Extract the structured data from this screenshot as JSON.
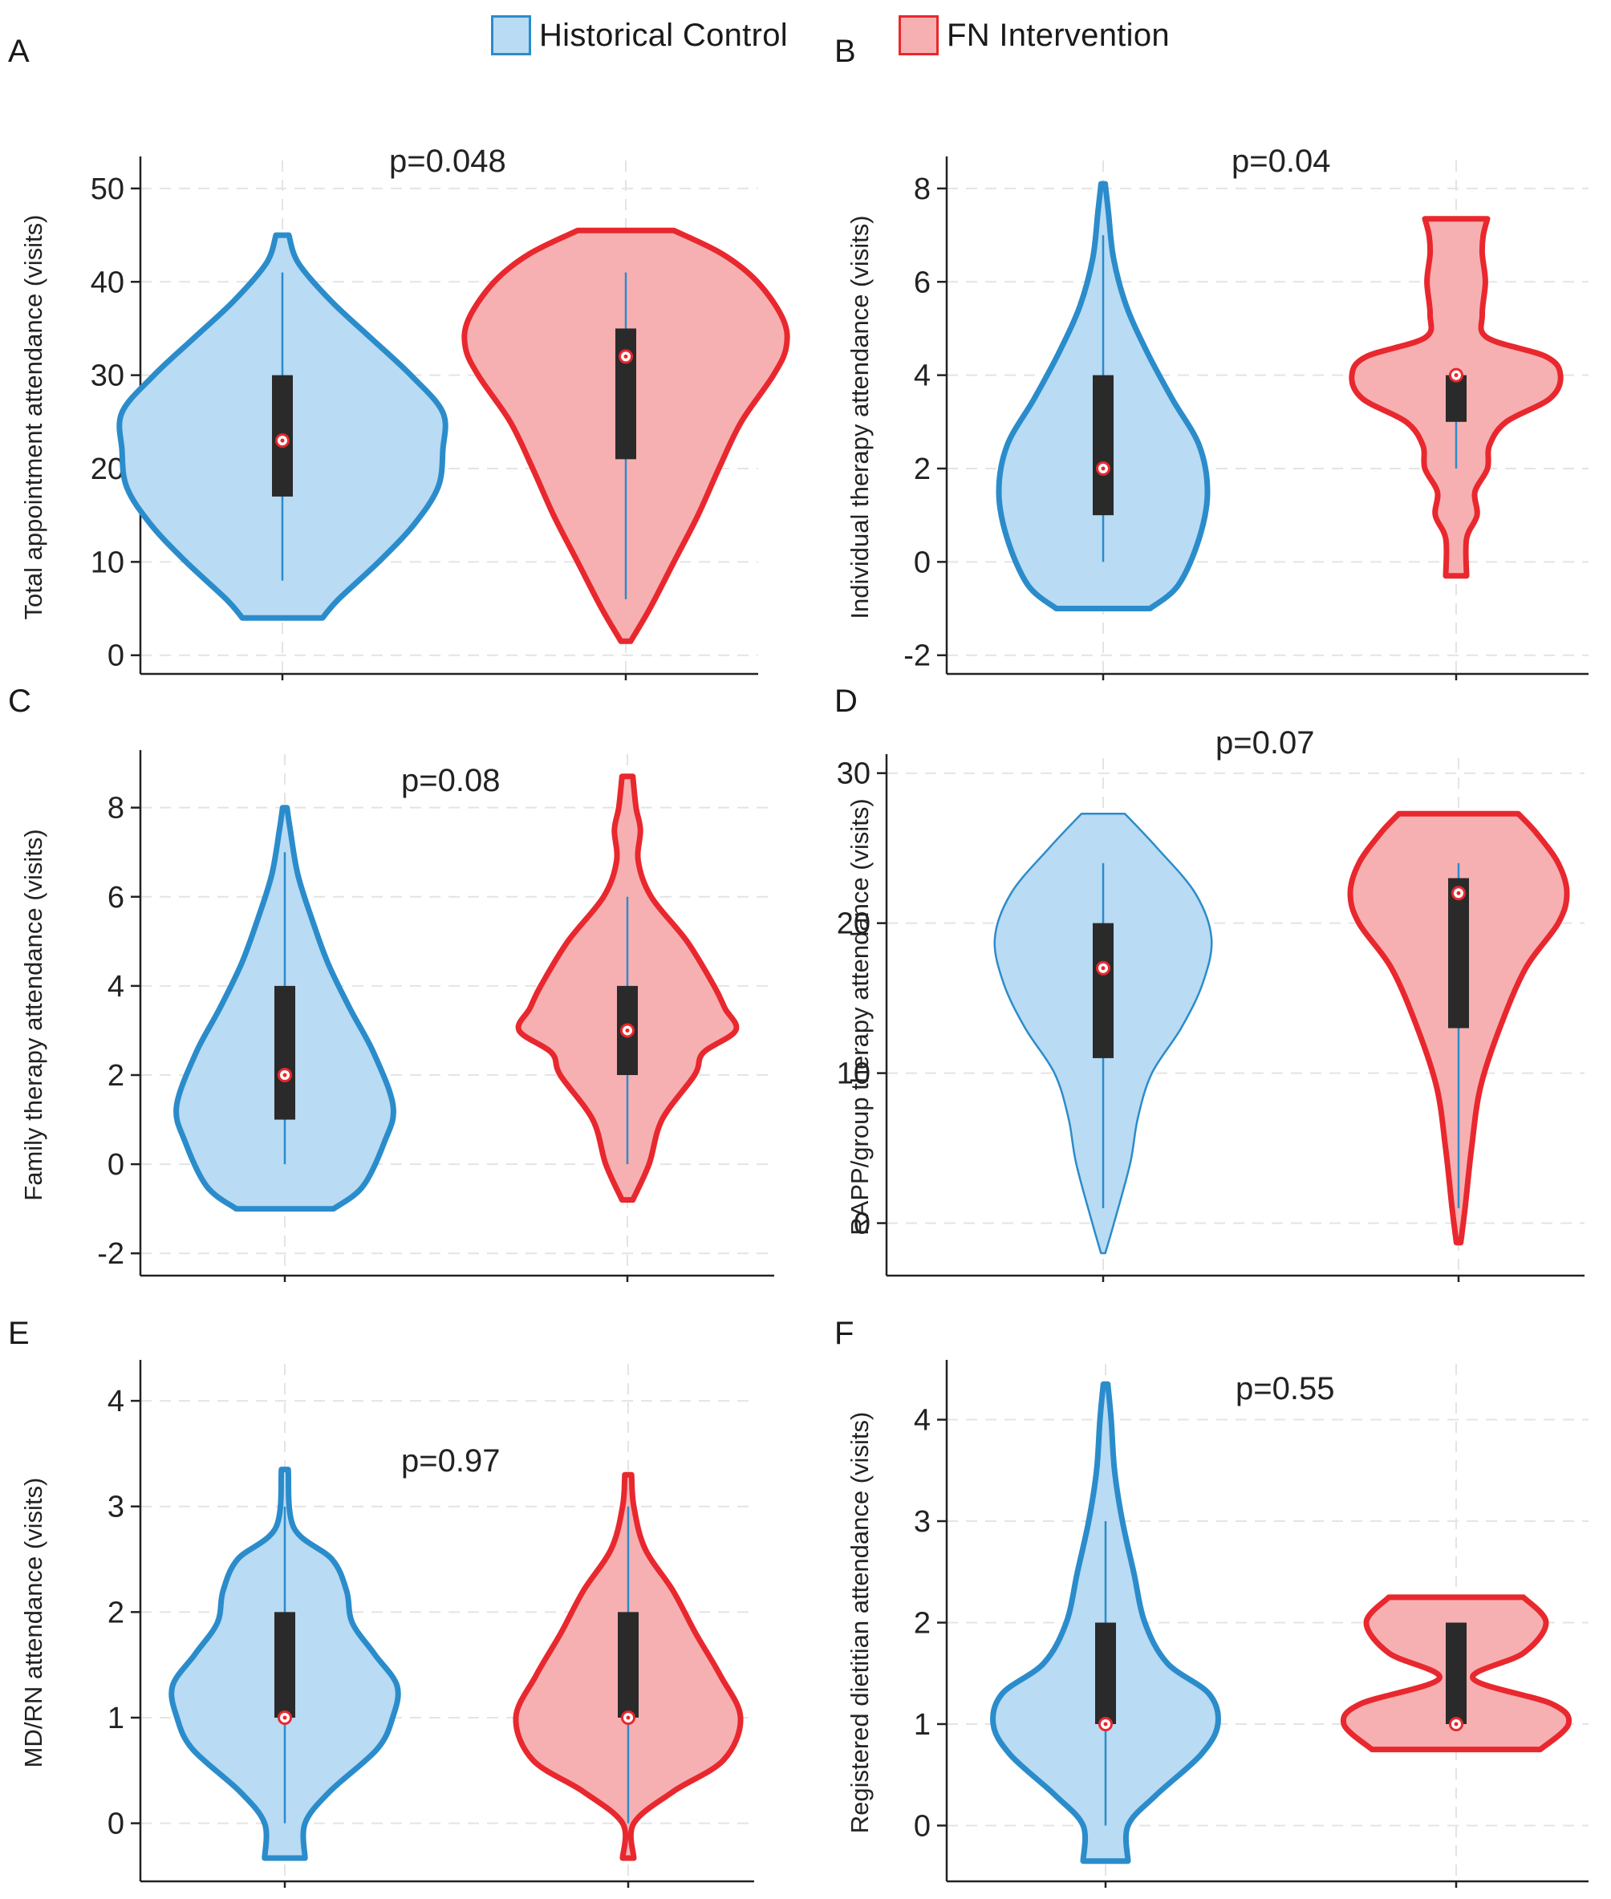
{
  "legend": {
    "control": {
      "label": "Historical Control",
      "fill": "#b9dbf3",
      "stroke": "#2b8ccb"
    },
    "intervention": {
      "label": "FN Intervention",
      "fill": "#f7b0b2",
      "stroke": "#e8282e"
    }
  },
  "chart_data": [
    {
      "type": "violin",
      "panel": "A",
      "annotation": "p=0.048",
      "ylabel": "Total appointment attendance (visits)",
      "ylim": [
        -2,
        53
      ],
      "yticks": [
        0,
        10,
        20,
        30,
        40,
        50
      ],
      "series": [
        {
          "name": "Historical Control",
          "min": 8,
          "q1": 17,
          "median": 23,
          "q3": 30,
          "max": 41,
          "density": [
            [
              4,
              0.25
            ],
            [
              6,
              0.35
            ],
            [
              10,
              0.6
            ],
            [
              14,
              0.82
            ],
            [
              18,
              0.97
            ],
            [
              22,
              1.0
            ],
            [
              26,
              1.0
            ],
            [
              30,
              0.8
            ],
            [
              34,
              0.55
            ],
            [
              38,
              0.3
            ],
            [
              42,
              0.1
            ],
            [
              45,
              0.04
            ]
          ]
        },
        {
          "name": "FN Intervention",
          "min": 6,
          "q1": 21,
          "median": 32,
          "q3": 35,
          "max": 41,
          "density": [
            [
              1.5,
              0.03
            ],
            [
              5,
              0.15
            ],
            [
              10,
              0.3
            ],
            [
              15,
              0.45
            ],
            [
              20,
              0.58
            ],
            [
              25,
              0.72
            ],
            [
              30,
              0.92
            ],
            [
              33,
              1.0
            ],
            [
              36,
              0.98
            ],
            [
              40,
              0.82
            ],
            [
              43,
              0.6
            ],
            [
              45.5,
              0.3
            ]
          ]
        }
      ]
    },
    {
      "type": "violin",
      "panel": "B",
      "annotation": "p=0.04",
      "ylabel": "Individual therapy attendance (visits)",
      "ylim": [
        -2.4,
        8.6
      ],
      "yticks": [
        -2,
        0,
        2,
        4,
        6,
        8
      ],
      "series": [
        {
          "name": "Historical Control",
          "min": 0,
          "q1": 1,
          "median": 2,
          "q3": 4,
          "max": 7,
          "density": [
            [
              -1,
              0.45
            ],
            [
              -0.5,
              0.72
            ],
            [
              0.5,
              0.92
            ],
            [
              1.5,
              1.0
            ],
            [
              2.5,
              0.92
            ],
            [
              3.5,
              0.66
            ],
            [
              4.5,
              0.42
            ],
            [
              5.5,
              0.22
            ],
            [
              6.5,
              0.1
            ],
            [
              7.5,
              0.05
            ],
            [
              8.1,
              0.02
            ]
          ]
        },
        {
          "name": "FN Intervention",
          "min": 2,
          "q1": 3,
          "median": 4,
          "q3": 4,
          "max": 4,
          "density": [
            [
              -0.3,
              0.1
            ],
            [
              0.5,
              0.1
            ],
            [
              1,
              0.2
            ],
            [
              1.5,
              0.18
            ],
            [
              2,
              0.3
            ],
            [
              2.5,
              0.32
            ],
            [
              3,
              0.48
            ],
            [
              3.5,
              0.9
            ],
            [
              4,
              1.0
            ],
            [
              4.4,
              0.86
            ],
            [
              4.8,
              0.3
            ],
            [
              5.3,
              0.25
            ],
            [
              6,
              0.28
            ],
            [
              6.6,
              0.25
            ],
            [
              7,
              0.26
            ],
            [
              7.35,
              0.3
            ]
          ]
        }
      ]
    },
    {
      "type": "violin",
      "panel": "C",
      "annotation": "p=0.08",
      "ylabel": "Family therapy attendance (visits)",
      "ylim": [
        -2.5,
        9.2
      ],
      "yticks": [
        -2,
        0,
        2,
        4,
        6,
        8
      ],
      "series": [
        {
          "name": "Historical Control",
          "min": 0,
          "q1": 1,
          "median": 2,
          "q3": 4,
          "max": 7,
          "density": [
            [
              -1,
              0.45
            ],
            [
              -0.5,
              0.72
            ],
            [
              0.5,
              0.92
            ],
            [
              1.3,
              1.0
            ],
            [
              2.5,
              0.82
            ],
            [
              3.5,
              0.6
            ],
            [
              4.5,
              0.4
            ],
            [
              5.5,
              0.25
            ],
            [
              6.5,
              0.12
            ],
            [
              7.5,
              0.05
            ],
            [
              8,
              0.02
            ]
          ]
        },
        {
          "name": "FN Intervention",
          "min": 0,
          "q1": 2,
          "median": 3,
          "q3": 4,
          "max": 6,
          "density": [
            [
              -0.8,
              0.05
            ],
            [
              0,
              0.2
            ],
            [
              1,
              0.32
            ],
            [
              2,
              0.62
            ],
            [
              2.5,
              0.7
            ],
            [
              3,
              1.0
            ],
            [
              3.5,
              0.9
            ],
            [
              4,
              0.8
            ],
            [
              5,
              0.55
            ],
            [
              6,
              0.22
            ],
            [
              6.8,
              0.1
            ],
            [
              7.5,
              0.12
            ],
            [
              8,
              0.08
            ],
            [
              8.7,
              0.05
            ]
          ]
        }
      ]
    },
    {
      "type": "violin",
      "panel": "D",
      "annotation": "p=0.07",
      "ylabel": "RAPP/group therapy attendance (visits)",
      "ylim": [
        -3.5,
        31
      ],
      "yticks": [
        0,
        10,
        20,
        30
      ],
      "series": [
        {
          "name": "Historical Control",
          "min": 1,
          "q1": 11,
          "median": 17,
          "q3": 20,
          "max": 24,
          "density": [
            [
              -2,
              0.02
            ],
            [
              0,
              0.1
            ],
            [
              4,
              0.25
            ],
            [
              7,
              0.32
            ],
            [
              10,
              0.45
            ],
            [
              13,
              0.72
            ],
            [
              16,
              0.92
            ],
            [
              19,
              1.0
            ],
            [
              22,
              0.85
            ],
            [
              25,
              0.5
            ],
            [
              27.3,
              0.2
            ]
          ]
        },
        {
          "name": "FN Intervention",
          "min": 1,
          "q1": 13,
          "median": 22,
          "q3": 23,
          "max": 24,
          "density": [
            [
              -1.3,
              0.02
            ],
            [
              1,
              0.06
            ],
            [
              5,
              0.12
            ],
            [
              9,
              0.2
            ],
            [
              13,
              0.38
            ],
            [
              17,
              0.62
            ],
            [
              20,
              0.92
            ],
            [
              22,
              1.0
            ],
            [
              24,
              0.92
            ],
            [
              26,
              0.72
            ],
            [
              27.3,
              0.55
            ]
          ]
        }
      ]
    },
    {
      "type": "violin",
      "panel": "E",
      "annotation": "p=0.97",
      "ylabel": "MD/RN attendance (visits)",
      "ylim": [
        -0.55,
        4.35
      ],
      "yticks": [
        0,
        1,
        2,
        3,
        4
      ],
      "series": [
        {
          "name": "Historical Control",
          "min": 0,
          "q1": 1,
          "median": 1,
          "q3": 2,
          "max": 3,
          "density": [
            [
              -0.33,
              0.18
            ],
            [
              0,
              0.18
            ],
            [
              0.3,
              0.4
            ],
            [
              0.7,
              0.82
            ],
            [
              1,
              0.96
            ],
            [
              1.3,
              1.0
            ],
            [
              1.6,
              0.8
            ],
            [
              1.9,
              0.6
            ],
            [
              2.2,
              0.55
            ],
            [
              2.5,
              0.42
            ],
            [
              2.8,
              0.08
            ],
            [
              3.35,
              0.03
            ]
          ]
        },
        {
          "name": "FN Intervention",
          "min": 0,
          "q1": 1,
          "median": 1,
          "q3": 2,
          "max": 3,
          "density": [
            [
              -0.33,
              0.05
            ],
            [
              0,
              0.05
            ],
            [
              0.3,
              0.4
            ],
            [
              0.6,
              0.85
            ],
            [
              1,
              1.0
            ],
            [
              1.4,
              0.82
            ],
            [
              1.8,
              0.6
            ],
            [
              2.2,
              0.4
            ],
            [
              2.6,
              0.15
            ],
            [
              3,
              0.05
            ],
            [
              3.3,
              0.03
            ]
          ]
        }
      ]
    },
    {
      "type": "violin",
      "panel": "F",
      "annotation": "p=0.55",
      "ylabel": "Registered dietitian attendance (visits)",
      "ylim": [
        -0.55,
        4.55
      ],
      "yticks": [
        0,
        1,
        2,
        3,
        4
      ],
      "series": [
        {
          "name": "Historical Control",
          "min": 0,
          "q1": 1,
          "median": 1,
          "q3": 2,
          "max": 3,
          "density": [
            [
              -0.35,
              0.2
            ],
            [
              0,
              0.2
            ],
            [
              0.3,
              0.45
            ],
            [
              0.7,
              0.85
            ],
            [
              1,
              1.0
            ],
            [
              1.3,
              0.92
            ],
            [
              1.6,
              0.55
            ],
            [
              2,
              0.35
            ],
            [
              2.5,
              0.25
            ],
            [
              3,
              0.15
            ],
            [
              3.5,
              0.08
            ],
            [
              4,
              0.05
            ],
            [
              4.35,
              0.02
            ]
          ]
        },
        {
          "name": "FN Intervention",
          "min": 1,
          "q1": 1,
          "median": 1,
          "q3": 2,
          "max": 2,
          "density": [
            [
              0.75,
              0.75
            ],
            [
              1,
              1.0
            ],
            [
              1.2,
              0.85
            ],
            [
              1.45,
              0.15
            ],
            [
              1.7,
              0.6
            ],
            [
              2,
              0.8
            ],
            [
              2.25,
              0.6
            ]
          ]
        }
      ]
    }
  ]
}
